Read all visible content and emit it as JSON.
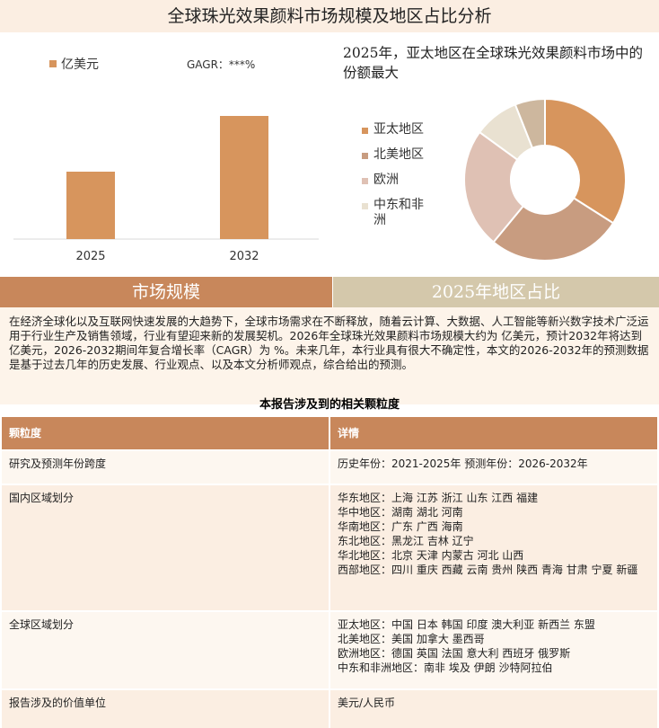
{
  "header": {
    "title": "全球珠光效果颜料市场规模及地区占比分析"
  },
  "chart_data": [
    {
      "type": "bar",
      "categories": [
        "2025",
        "2032"
      ],
      "series": [
        {
          "name": "亿美元",
          "color": "#d7955d",
          "values": [
            75,
            137
          ]
        }
      ],
      "annotation": "GAGR：***%"
    },
    {
      "type": "pie",
      "title": "2025年，亚太地区在全球珠光效果颜料市场中的份额最大",
      "categories": [
        "亚太地区",
        "北美地区",
        "欧洲",
        "中东和非洲",
        null
      ],
      "values": [
        34,
        27,
        24,
        9,
        6
      ],
      "colors": [
        "#d7955d",
        "#c89c80",
        "#dfc1b4",
        "#e9e1d1",
        "#cdb79e"
      ]
    }
  ],
  "banners": [
    "市场规模",
    "2025年地区占比"
  ],
  "description": "在经济全球化以及互联网快速发展的大趋势下，全球市场需求在不断释放，随着云计算、大数据、人工智能等新兴数字技术广泛运用于行业生产及销售领域，行业有望迎来新的发展契机。2026年全球珠光效果颜料市场规模大约为 亿美元，预计2032年将达到 亿美元，2026-2032期间年复合增长率（CAGR）为 %。未来几年，本行业具有很大不确定性，本文的2026-2032年的预测数据是基于过去几年的历史发展、行业观点、以及本文分析师观点，综合给出的预测。",
  "table": {
    "caption": "本报告涉及到的相关颗粒度",
    "header": [
      "颗粒度",
      "详情"
    ],
    "rows": [
      [
        "研究及预测年份跨度",
        [
          "历史年份：2021-2025年 预测年份：2026-2032年"
        ]
      ],
      [
        "国内区域划分",
        [
          "华东地区：上海 江苏 浙江 山东 江西 福建",
          "华中地区：湖南 湖北 河南",
          "华南地区：广东 广西 海南",
          "东北地区：黑龙江 吉林 辽宁",
          "华北地区：北京 天津 内蒙古 河北 山西",
          "西部地区：四川 重庆 西藏 云南 贵州 陕西 青海 甘肃 宁夏 新疆"
        ]
      ],
      [
        "全球区域划分",
        [
          "亚太地区：中国 日本 韩国 印度 澳大利亚 新西兰 东盟",
          "北美地区：美国 加拿大 墨西哥",
          "欧洲地区：德国 英国 法国 意大利 西班牙 俄罗斯",
          "中东和非洲地区：南非 埃及 伊朗 沙特阿拉伯"
        ]
      ],
      [
        "报告涉及的价值单位",
        [
          "美元/人民币"
        ]
      ]
    ]
  }
}
